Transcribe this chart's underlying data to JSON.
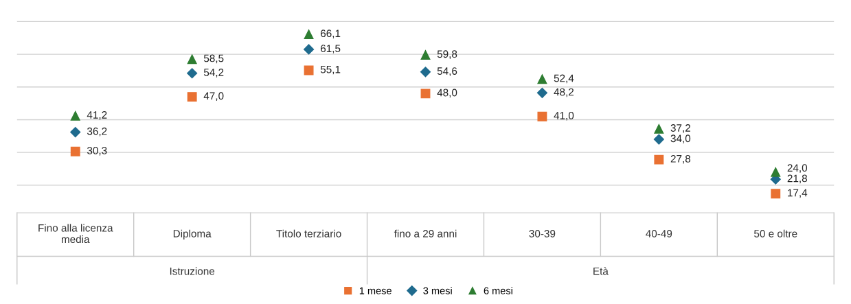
{
  "chart_data": {
    "type": "scatter",
    "categories": [
      "Fino alla licenza media",
      "Diploma",
      "Titolo terziario",
      "fino a 29 anni",
      "30-39",
      "40-49",
      "50 e oltre"
    ],
    "series": [
      {
        "name": "1 mese",
        "color": "#e97132",
        "marker": "square",
        "values": [
          30.3,
          47.0,
          55.1,
          48.0,
          41.0,
          27.8,
          17.4
        ],
        "value_labels": [
          "30,3",
          "47,0",
          "55,1",
          "48,0",
          "41,0",
          "27,8",
          "17,4"
        ]
      },
      {
        "name": "3 mesi",
        "color": "#1f6b8e",
        "marker": "diamond",
        "values": [
          36.2,
          54.2,
          61.5,
          54.6,
          48.2,
          34.0,
          21.8
        ],
        "value_labels": [
          "36,2",
          "54,2",
          "61,5",
          "54,6",
          "48,2",
          "34,0",
          "21,8"
        ]
      },
      {
        "name": "6 mesi",
        "color": "#2e7d32",
        "marker": "triangle",
        "values": [
          41.2,
          58.5,
          66.1,
          59.8,
          52.4,
          37.2,
          24.0
        ],
        "value_labels": [
          "41,2",
          "58,5",
          "66,1",
          "59,8",
          "52,4",
          "37,2",
          "24,0"
        ]
      }
    ],
    "annotations": [
      "Istruzione",
      "Età"
    ],
    "grid": "y",
    "legend": "bottom",
    "tick_labels": "x"
  }
}
